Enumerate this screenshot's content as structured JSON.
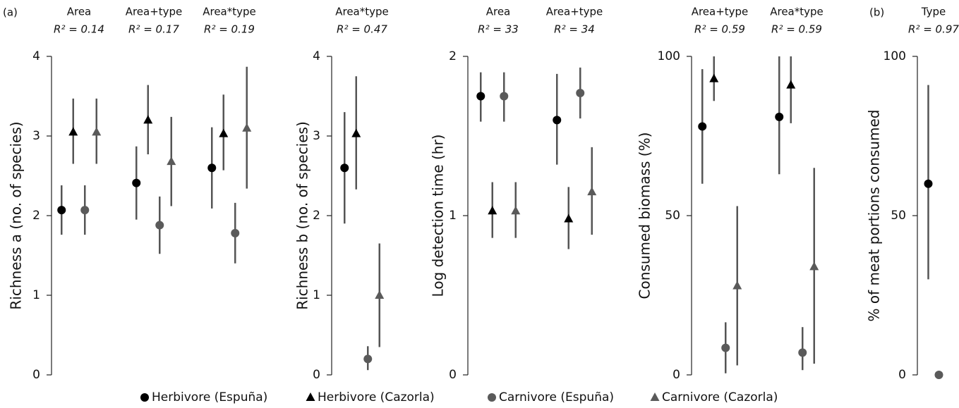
{
  "panel_labels": [
    "(a)",
    "(b)"
  ],
  "legend": [
    {
      "name": "Herbivore (Espuña)",
      "color": "#000000",
      "marker": "circle"
    },
    {
      "name": "Herbivore (Cazorla)",
      "color": "#000000",
      "marker": "triangle"
    },
    {
      "name": "Carnivore (Espuña)",
      "color": "#5a5a5a",
      "marker": "circle"
    },
    {
      "name": "Carnivore (Cazorla)",
      "color": "#5a5a5a",
      "marker": "triangle"
    }
  ],
  "chart_data": [
    {
      "type": "dot",
      "ylabel": "Richness a (no. of species)",
      "ylim": [
        0,
        4
      ],
      "yticks": [
        0,
        1,
        2,
        3,
        4
      ],
      "categories": [
        "Area",
        "Area+type",
        "Area*type"
      ],
      "fits": [
        "R² = 0.14",
        "R² = 0.17",
        "R² = 0.19"
      ],
      "series": [
        {
          "values": [
            2.07,
            2.41,
            2.6
          ],
          "lower": [
            1.76,
            1.95,
            2.09
          ],
          "upper": [
            2.38,
            2.87,
            3.11
          ]
        },
        {
          "values": [
            3.05,
            3.2,
            3.03
          ],
          "lower": [
            2.65,
            2.77,
            2.57
          ],
          "upper": [
            3.47,
            3.64,
            3.52
          ]
        },
        {
          "values": [
            2.07,
            1.88,
            1.78
          ],
          "lower": [
            1.76,
            1.52,
            1.4
          ],
          "upper": [
            2.38,
            2.24,
            2.16
          ]
        },
        {
          "values": [
            3.05,
            2.68,
            3.1
          ],
          "lower": [
            2.65,
            2.12,
            2.34
          ],
          "upper": [
            3.47,
            3.24,
            3.87
          ]
        }
      ]
    },
    {
      "type": "dot",
      "ylabel": "Richness b (no. of species)",
      "ylim": [
        0,
        4
      ],
      "yticks": [
        0,
        1,
        2,
        3,
        4
      ],
      "categories": [
        "Area*type"
      ],
      "fits": [
        "R² = 0.47"
      ],
      "series": [
        {
          "values": [
            2.6
          ],
          "lower": [
            1.9
          ],
          "upper": [
            3.3
          ]
        },
        {
          "values": [
            3.03
          ],
          "lower": [
            2.33
          ],
          "upper": [
            3.75
          ]
        },
        {
          "values": [
            0.2
          ],
          "lower": [
            0.06
          ],
          "upper": [
            0.36
          ]
        },
        {
          "values": [
            1.0
          ],
          "lower": [
            0.35
          ],
          "upper": [
            1.65
          ]
        }
      ]
    },
    {
      "type": "dot",
      "ylabel": "Log detection time (hr)",
      "ylim": [
        0,
        2
      ],
      "yticks": [
        0,
        1,
        2
      ],
      "categories": [
        "Area",
        "Area+type"
      ],
      "fits": [
        "R² = 33",
        "R² = 34"
      ],
      "series": [
        {
          "values": [
            1.75,
            1.6
          ],
          "lower": [
            1.59,
            1.32
          ],
          "upper": [
            1.9,
            1.89
          ]
        },
        {
          "values": [
            1.03,
            0.98
          ],
          "lower": [
            0.86,
            0.79
          ],
          "upper": [
            1.21,
            1.18
          ]
        },
        {
          "values": [
            1.75,
            1.77
          ],
          "lower": [
            1.59,
            1.61
          ],
          "upper": [
            1.9,
            1.93
          ]
        },
        {
          "values": [
            1.03,
            1.15
          ],
          "lower": [
            0.86,
            0.88
          ],
          "upper": [
            1.21,
            1.43
          ]
        }
      ]
    },
    {
      "type": "dot",
      "ylabel": "Consumed biomass (%)",
      "ylim": [
        0,
        100
      ],
      "yticks": [
        0,
        50,
        100
      ],
      "categories": [
        "Area+type",
        "Area*type"
      ],
      "fits": [
        "R² = 0.59",
        "R² = 0.59"
      ],
      "series": [
        {
          "values": [
            78,
            81
          ],
          "lower": [
            60,
            63
          ],
          "upper": [
            96,
            100
          ]
        },
        {
          "values": [
            93,
            91
          ],
          "lower": [
            86,
            79
          ],
          "upper": [
            100,
            100
          ]
        },
        {
          "values": [
            8.5,
            7
          ],
          "lower": [
            0.5,
            1.5
          ],
          "upper": [
            16.5,
            15
          ]
        },
        {
          "values": [
            28,
            34
          ],
          "lower": [
            3,
            3.5
          ],
          "upper": [
            53,
            65
          ]
        }
      ]
    },
    {
      "type": "dot",
      "ylabel": "% of meat portions consumed",
      "ylim": [
        0,
        100
      ],
      "yticks": [
        0,
        50,
        100
      ],
      "categories": [
        "Type"
      ],
      "fits": [
        "R² = 0.97"
      ],
      "series": [
        {
          "values": [
            60
          ],
          "lower": [
            30
          ],
          "upper": [
            91
          ]
        },
        {
          "values": [
            null
          ],
          "lower": [
            null
          ],
          "upper": [
            null
          ]
        },
        {
          "values": [
            0
          ],
          "lower": [
            null
          ],
          "upper": [
            null
          ]
        },
        {
          "values": [
            null
          ],
          "lower": [
            null
          ],
          "upper": [
            null
          ]
        }
      ]
    }
  ]
}
